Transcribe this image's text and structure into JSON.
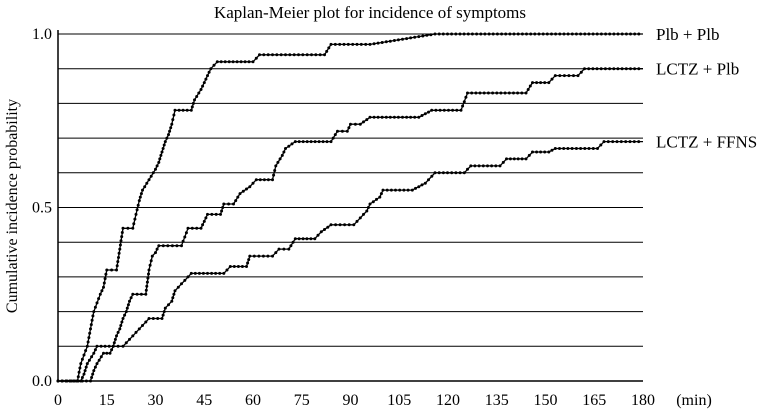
{
  "chart_data": {
    "type": "line",
    "title": "Kaplan-Meier plot for incidence of symptoms",
    "xlabel": "",
    "ylabel": "Cumulative  incidence  probability",
    "x_unit_label": "(min)",
    "xlim": [
      0,
      180
    ],
    "ylim": [
      0,
      1
    ],
    "x_ticks": [
      0,
      15,
      30,
      45,
      60,
      75,
      90,
      105,
      120,
      135,
      150,
      165,
      180
    ],
    "x_tick_labels": [
      "0",
      "15",
      "30",
      "45",
      "60",
      "75",
      "90",
      "105",
      "120",
      "135",
      "150",
      "165",
      "180"
    ],
    "y_ticks": [
      0,
      0.5,
      1.0
    ],
    "y_tick_labels": [
      "0.0",
      "0.5",
      "1.0"
    ],
    "y_gridlines": [
      0.1,
      0.2,
      0.3,
      0.4,
      0.5,
      0.6,
      0.7,
      0.8,
      0.9,
      1.0
    ],
    "grid": true,
    "legend": "right-side labels at curve ends",
    "series": [
      {
        "name": "Plb + Plb",
        "points": [
          [
            0,
            0
          ],
          [
            6,
            0
          ],
          [
            7,
            0.05
          ],
          [
            9,
            0.1
          ],
          [
            10,
            0.15
          ],
          [
            11,
            0.2
          ],
          [
            13,
            0.25
          ],
          [
            14,
            0.27
          ],
          [
            15,
            0.32
          ],
          [
            18,
            0.32
          ],
          [
            19,
            0.38
          ],
          [
            20,
            0.44
          ],
          [
            23,
            0.44
          ],
          [
            24,
            0.48
          ],
          [
            25,
            0.52
          ],
          [
            26,
            0.55
          ],
          [
            28,
            0.58
          ],
          [
            30,
            0.61
          ],
          [
            31,
            0.63
          ],
          [
            32,
            0.66
          ],
          [
            33,
            0.69
          ],
          [
            34,
            0.71
          ],
          [
            35,
            0.74
          ],
          [
            36,
            0.78
          ],
          [
            41,
            0.78
          ],
          [
            42,
            0.81
          ],
          [
            44,
            0.84
          ],
          [
            46,
            0.88
          ],
          [
            47,
            0.9
          ],
          [
            49,
            0.92
          ],
          [
            60,
            0.92
          ],
          [
            62,
            0.94
          ],
          [
            82,
            0.94
          ],
          [
            84,
            0.97
          ],
          [
            96,
            0.97
          ],
          [
            116,
            1.0
          ],
          [
            180,
            1.0
          ]
        ]
      },
      {
        "name": "LCTZ + Plb",
        "points": [
          [
            0,
            0
          ],
          [
            7,
            0
          ],
          [
            8,
            0.02
          ],
          [
            9,
            0.05
          ],
          [
            11,
            0.08
          ],
          [
            12,
            0.1
          ],
          [
            17,
            0.1
          ],
          [
            18,
            0.13
          ],
          [
            19,
            0.15
          ],
          [
            20,
            0.18
          ],
          [
            21,
            0.2
          ],
          [
            22,
            0.23
          ],
          [
            23,
            0.25
          ],
          [
            27,
            0.25
          ],
          [
            28,
            0.32
          ],
          [
            29,
            0.36
          ],
          [
            30,
            0.37
          ],
          [
            31,
            0.39
          ],
          [
            38,
            0.39
          ],
          [
            40,
            0.44
          ],
          [
            44,
            0.44
          ],
          [
            46,
            0.48
          ],
          [
            50,
            0.48
          ],
          [
            51,
            0.51
          ],
          [
            54,
            0.51
          ],
          [
            56,
            0.54
          ],
          [
            59,
            0.56
          ],
          [
            61,
            0.58
          ],
          [
            66,
            0.58
          ],
          [
            67,
            0.62
          ],
          [
            69,
            0.65
          ],
          [
            70,
            0.67
          ],
          [
            73,
            0.69
          ],
          [
            84,
            0.69
          ],
          [
            86,
            0.72
          ],
          [
            89,
            0.72
          ],
          [
            90,
            0.74
          ],
          [
            93,
            0.74
          ],
          [
            96,
            0.76
          ],
          [
            111,
            0.76
          ],
          [
            115,
            0.78
          ],
          [
            124,
            0.78
          ],
          [
            126,
            0.83
          ],
          [
            144,
            0.83
          ],
          [
            146,
            0.86
          ],
          [
            151,
            0.86
          ],
          [
            153,
            0.88
          ],
          [
            160,
            0.88
          ],
          [
            162,
            0.9
          ],
          [
            180,
            0.9
          ]
        ]
      },
      {
        "name": "LCTZ + FFNS",
        "points": [
          [
            0,
            0
          ],
          [
            10,
            0
          ],
          [
            11,
            0.03
          ],
          [
            12,
            0.05
          ],
          [
            14,
            0.08
          ],
          [
            16,
            0.08
          ],
          [
            17,
            0.1
          ],
          [
            20,
            0.1
          ],
          [
            23,
            0.13
          ],
          [
            25,
            0.15
          ],
          [
            27,
            0.17
          ],
          [
            28,
            0.18
          ],
          [
            32,
            0.18
          ],
          [
            33,
            0.21
          ],
          [
            35,
            0.23
          ],
          [
            36,
            0.26
          ],
          [
            38,
            0.28
          ],
          [
            39,
            0.29
          ],
          [
            41,
            0.31
          ],
          [
            51,
            0.31
          ],
          [
            53,
            0.33
          ],
          [
            58,
            0.33
          ],
          [
            59,
            0.36
          ],
          [
            66,
            0.36
          ],
          [
            68,
            0.38
          ],
          [
            71,
            0.38
          ],
          [
            73,
            0.41
          ],
          [
            79,
            0.41
          ],
          [
            81,
            0.43
          ],
          [
            84,
            0.45
          ],
          [
            91,
            0.45
          ],
          [
            93,
            0.47
          ],
          [
            95,
            0.49
          ],
          [
            96,
            0.51
          ],
          [
            99,
            0.53
          ],
          [
            100,
            0.55
          ],
          [
            109,
            0.55
          ],
          [
            113,
            0.57
          ],
          [
            116,
            0.6
          ],
          [
            125,
            0.6
          ],
          [
            127,
            0.62
          ],
          [
            136,
            0.62
          ],
          [
            138,
            0.64
          ],
          [
            144,
            0.64
          ],
          [
            146,
            0.66
          ],
          [
            151,
            0.66
          ],
          [
            153,
            0.67
          ],
          [
            166,
            0.67
          ],
          [
            168,
            0.69
          ],
          [
            180,
            0.69
          ]
        ]
      }
    ]
  }
}
